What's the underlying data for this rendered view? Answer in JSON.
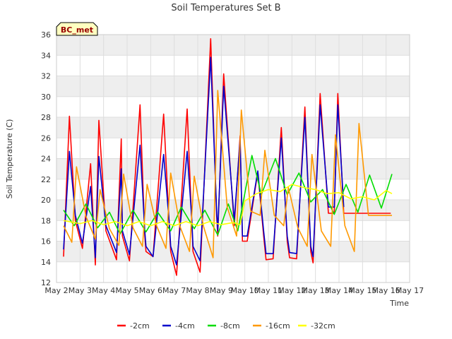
{
  "chart_data": {
    "type": "line",
    "title": "Soil Temperatures Set B",
    "xlabel": "Time",
    "ylabel": "Soil Temperature (C)",
    "site_label": "BC_met",
    "ylim": [
      12,
      36
    ],
    "y_ticks": [
      "12",
      "14",
      "16",
      "18",
      "20",
      "22",
      "24",
      "26",
      "28",
      "30",
      "32",
      "34",
      "36"
    ],
    "x_domain": [
      2,
      17
    ],
    "x_ticks": [
      {
        "day": 2,
        "label": "May 2"
      },
      {
        "day": 3,
        "label": "May 3"
      },
      {
        "day": 4,
        "label": "May 4"
      },
      {
        "day": 5,
        "label": "May 5"
      },
      {
        "day": 6,
        "label": "May 6"
      },
      {
        "day": 7,
        "label": "May 7"
      },
      {
        "day": 8,
        "label": "May 8"
      },
      {
        "day": 9,
        "label": "May 9"
      },
      {
        "day": 10,
        "label": "May 10"
      },
      {
        "day": 11,
        "label": "May 11"
      },
      {
        "day": 12,
        "label": "May 12"
      },
      {
        "day": 13,
        "label": "May 13"
      },
      {
        "day": 14,
        "label": "May 14"
      },
      {
        "day": 15,
        "label": "May 15"
      },
      {
        "day": 16,
        "label": "May 16"
      },
      {
        "day": 17,
        "label": "May 17"
      }
    ],
    "grid": true,
    "legend_position": "bottom",
    "series": [
      {
        "name": "-2cm",
        "color": "#ff0000",
        "x": [
          2.3,
          2.55,
          2.8,
          3.1,
          3.45,
          3.65,
          3.8,
          4.1,
          4.55,
          4.75,
          4.8,
          5.1,
          5.55,
          5.75,
          5.8,
          6.1,
          6.55,
          6.8,
          6.85,
          7.1,
          7.55,
          7.75,
          7.8,
          8.1,
          8.55,
          8.8,
          8.85,
          9.1,
          9.55,
          9.8,
          9.9,
          10.1,
          10.55,
          10.8,
          10.9,
          11.2,
          11.55,
          11.8,
          11.9,
          12.2,
          12.55,
          12.8,
          12.9,
          13.2,
          13.55,
          13.8,
          13.95,
          14.2,
          14.55,
          14.8,
          14.95,
          15.2,
          15.55,
          15.8,
          15.95,
          16.2
        ],
        "y": [
          14.5,
          28.1,
          18.0,
          15.3,
          23.5,
          13.7,
          27.7,
          17.0,
          14.2,
          25.9,
          16.5,
          14.1,
          29.2,
          16.5,
          15.0,
          14.5,
          28.3,
          17.0,
          15.0,
          12.7,
          28.8,
          17.5,
          15.0,
          13.0,
          35.6,
          18.5,
          16.5,
          32.2,
          17.5,
          26.2,
          16.0,
          16.0,
          22.7,
          16.5,
          14.2,
          14.3,
          27.0,
          16.0,
          14.4,
          14.3,
          29.0,
          15.0,
          13.9,
          30.3,
          18.7,
          18.7,
          30.3,
          18.7,
          18.7,
          18.7,
          18.7,
          18.7,
          18.7,
          18.7,
          18.7,
          18.7
        ]
      },
      {
        "name": "-4cm",
        "color": "#0000cc",
        "x": [
          2.3,
          2.55,
          2.8,
          3.1,
          3.45,
          3.65,
          3.8,
          4.1,
          4.55,
          4.75,
          4.8,
          5.1,
          5.55,
          5.75,
          5.8,
          6.1,
          6.55,
          6.8,
          6.85,
          7.1,
          7.55,
          7.75,
          7.8,
          8.1,
          8.55,
          8.8,
          8.85,
          9.1,
          9.55,
          9.8,
          9.9,
          10.1,
          10.55,
          10.8,
          10.9,
          11.2,
          11.55,
          11.8,
          11.9,
          12.2,
          12.55,
          12.8,
          12.9,
          13.2,
          13.55,
          13.8,
          13.95,
          14.2
        ],
        "y": [
          15.2,
          24.7,
          18.5,
          15.8,
          21.3,
          14.4,
          24.2,
          17.5,
          14.9,
          23.0,
          17.0,
          14.7,
          25.3,
          17.0,
          15.5,
          14.5,
          24.4,
          17.5,
          15.5,
          13.7,
          24.7,
          18.0,
          15.5,
          14.1,
          33.8,
          19.0,
          17.0,
          31.0,
          18.0,
          25.8,
          16.5,
          16.5,
          22.8,
          17.0,
          14.8,
          14.8,
          26.0,
          16.5,
          14.9,
          14.8,
          28.0,
          15.5,
          14.5,
          29.2,
          19.3,
          19.3,
          29.2,
          19.3
        ]
      },
      {
        "name": "-8cm",
        "color": "#00dd00",
        "x": [
          2.3,
          2.75,
          3.25,
          3.75,
          4.25,
          4.7,
          5.25,
          5.8,
          6.3,
          6.85,
          7.3,
          7.85,
          8.3,
          8.85,
          9.3,
          9.7,
          10.3,
          10.7,
          11.3,
          11.8,
          12.3,
          12.8,
          13.3,
          13.8,
          14.3,
          14.8,
          15.3,
          15.8,
          16.25
        ],
        "y": [
          19.0,
          17.5,
          19.6,
          17.3,
          18.8,
          16.7,
          19.0,
          16.9,
          18.8,
          17.0,
          19.3,
          17.2,
          19.0,
          16.6,
          19.6,
          17.0,
          24.3,
          20.5,
          24.0,
          20.5,
          22.6,
          19.8,
          21.0,
          18.6,
          21.5,
          18.8,
          22.4,
          19.2,
          22.5
        ]
      },
      {
        "name": "-16cm",
        "color": "#ff9900",
        "x": [
          2.3,
          2.65,
          2.85,
          3.25,
          3.65,
          3.85,
          4.25,
          4.65,
          4.85,
          5.25,
          5.65,
          5.85,
          6.25,
          6.65,
          6.85,
          7.25,
          7.65,
          7.85,
          8.25,
          8.65,
          8.85,
          9.25,
          9.65,
          9.85,
          10.25,
          10.65,
          10.85,
          11.25,
          11.65,
          11.85,
          12.25,
          12.65,
          12.85,
          13.25,
          13.65,
          13.85,
          14.25,
          14.65,
          14.85,
          15.25,
          15.65,
          15.85,
          16.25
        ],
        "y": [
          17.5,
          15.9,
          23.2,
          18.4,
          16.2,
          21.0,
          17.2,
          15.6,
          22.5,
          17.3,
          15.5,
          21.5,
          17.5,
          15.3,
          22.6,
          17.4,
          15.0,
          22.3,
          17.4,
          14.4,
          30.6,
          19.3,
          16.5,
          28.7,
          18.9,
          18.5,
          24.8,
          18.5,
          17.5,
          21.2,
          17.3,
          15.5,
          24.4,
          17.0,
          15.5,
          26.3,
          17.5,
          15.0,
          27.4,
          18.5,
          18.5,
          18.5,
          18.5
        ]
      },
      {
        "name": "-32cm",
        "color": "#ffff00",
        "x": [
          2.3,
          3.0,
          3.5,
          4.0,
          4.5,
          5.0,
          5.5,
          6.0,
          6.5,
          7.0,
          7.5,
          8.0,
          8.5,
          9.0,
          9.5,
          9.8,
          10.0,
          10.5,
          11.0,
          11.5,
          12.0,
          12.5,
          13.0,
          13.5,
          14.0,
          14.5,
          15.0,
          15.5,
          16.0,
          16.25
        ],
        "y": [
          18.0,
          17.7,
          18.0,
          17.6,
          17.9,
          17.5,
          17.9,
          17.5,
          17.9,
          17.5,
          17.9,
          17.5,
          17.9,
          17.6,
          17.8,
          17.6,
          19.9,
          20.6,
          21.0,
          20.8,
          21.5,
          21.2,
          21.0,
          20.6,
          20.7,
          20.1,
          20.3,
          20.0,
          20.9,
          20.6
        ]
      }
    ]
  }
}
